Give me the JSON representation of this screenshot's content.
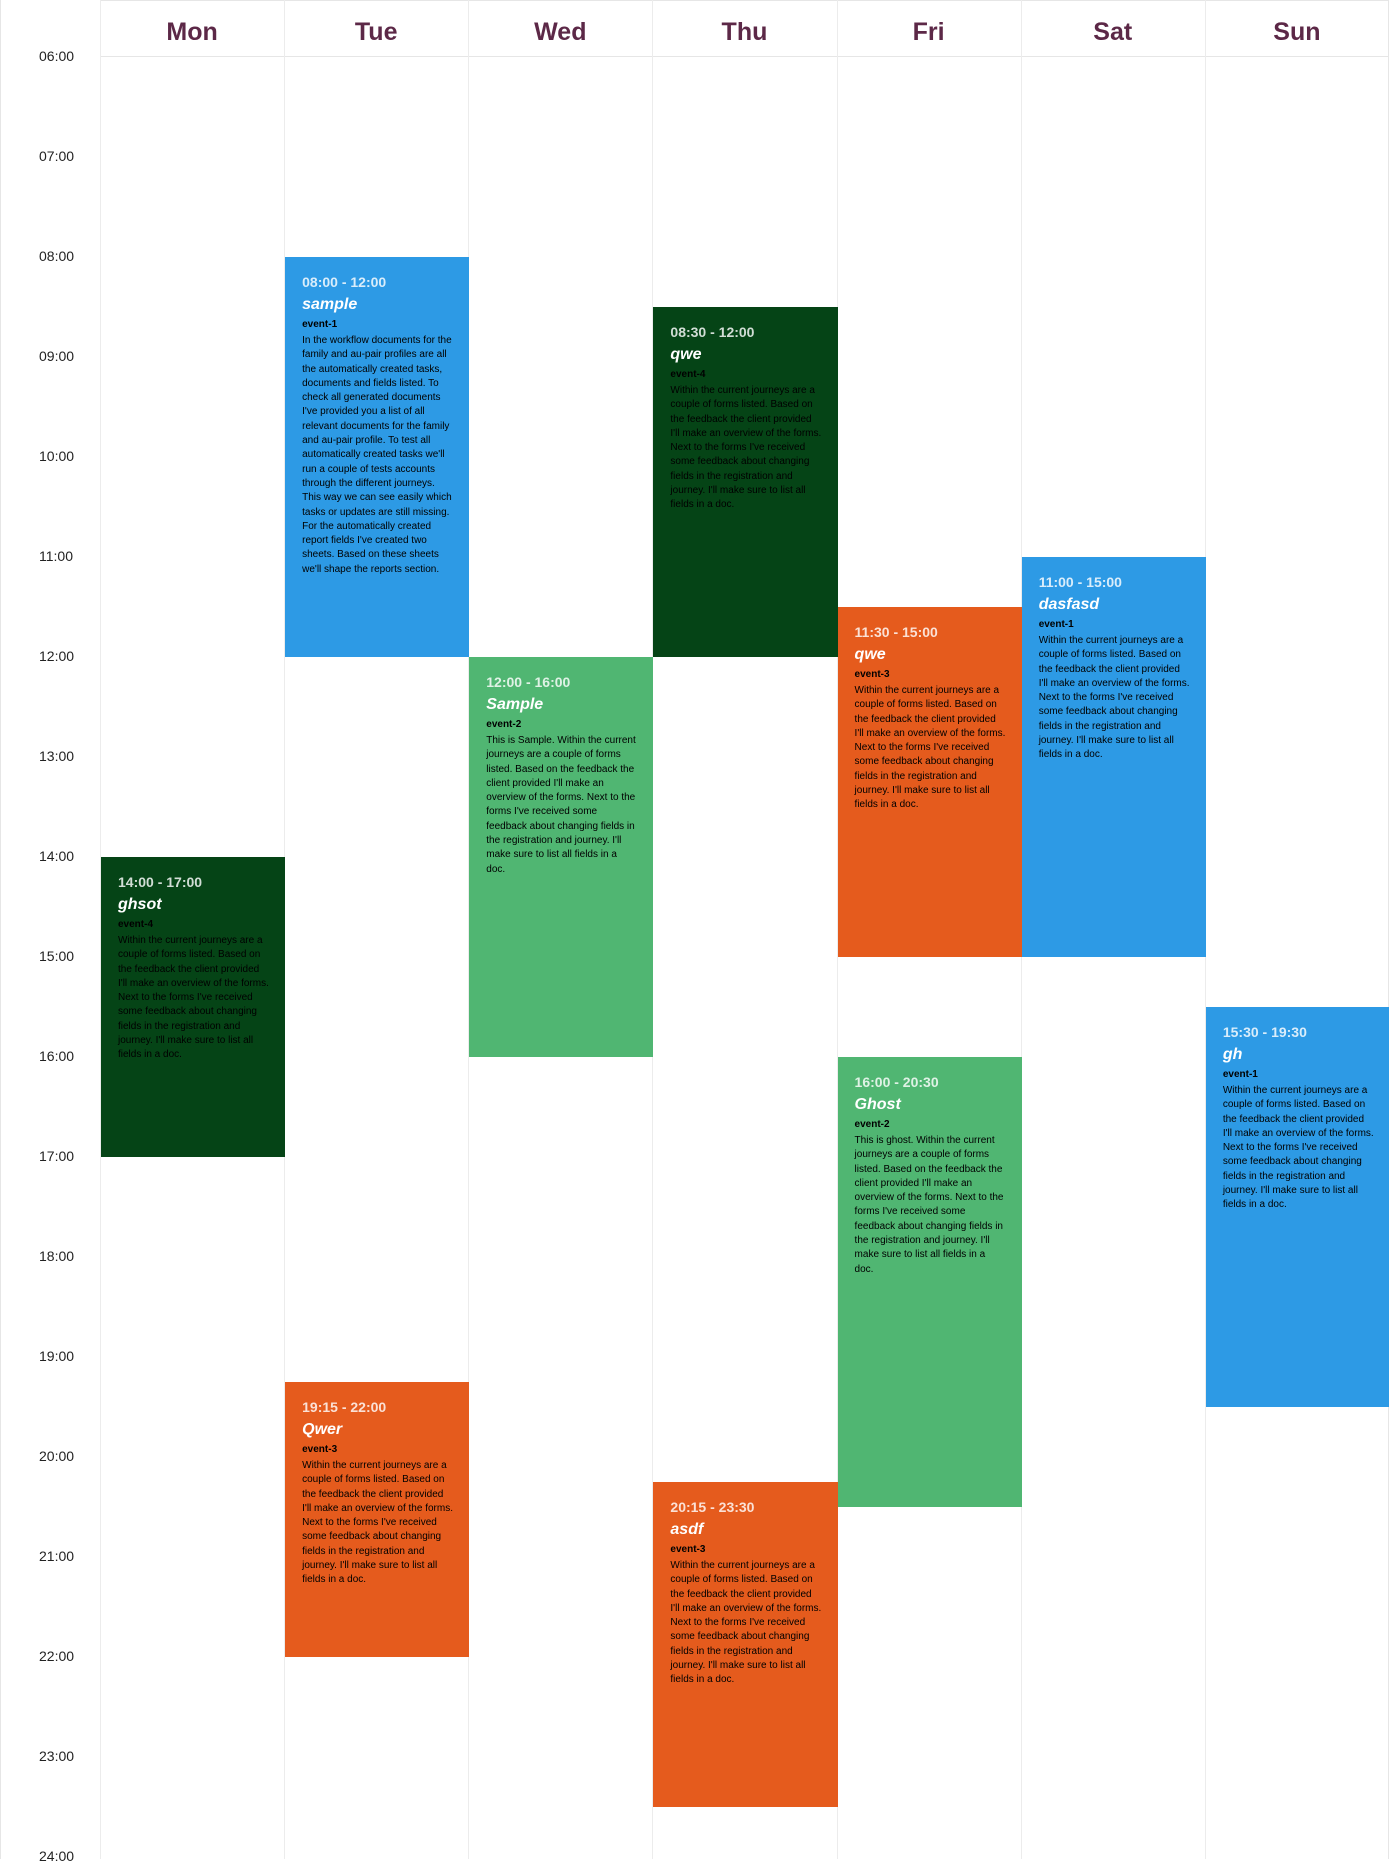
{
  "days": [
    "Mon",
    "Tue",
    "Wed",
    "Thu",
    "Fri",
    "Sat",
    "Sun"
  ],
  "times": [
    "06:00",
    "07:00",
    "08:00",
    "09:00",
    "10:00",
    "11:00",
    "12:00",
    "13:00",
    "14:00",
    "15:00",
    "16:00",
    "17:00",
    "18:00",
    "19:00",
    "20:00",
    "21:00",
    "22:00",
    "23:00",
    "24:00"
  ],
  "colors": {
    "blue": "#2d9ae5",
    "dark_green": "#054416",
    "orange": "#e55b1d",
    "green": "#50b672",
    "header_text": "#5c2847"
  },
  "events": [
    {
      "day": "Mon",
      "start": "14:00",
      "end": "17:00",
      "color": "dark",
      "time_label": "14:00 - 17:00",
      "title": "ghsot",
      "name": "event-4",
      "description": "Within the current journeys are a couple of forms listed. Based on the feedback the client provided I'll make an overview of the forms. Next to the forms I've received some feedback about changing fields in the registration and journey. I'll make sure to list all fields in a doc."
    },
    {
      "day": "Tue",
      "start": "08:00",
      "end": "12:00",
      "color": "blue",
      "time_label": "08:00 - 12:00",
      "title": "sample",
      "name": "event-1",
      "description": "In the workflow documents for the family and au-pair profiles are all the automatically created tasks, documents and fields listed. To check all generated documents I've provided you a list of all relevant documents for the family and au-pair profile. To test all automatically created tasks we'll run a couple of tests accounts through the different journeys. This way we can see easily which tasks or updates are still missing. For the automatically created report fields I've created two sheets. Based on these sheets we'll shape the reports section."
    },
    {
      "day": "Tue",
      "start": "19:15",
      "end": "22:00",
      "color": "orange",
      "time_label": "19:15 - 22:00",
      "title": "Qwer",
      "name": "event-3",
      "description": "Within the current journeys are a couple of forms listed. Based on the feedback the client provided I'll make an overview of the forms. Next to the forms I've received some feedback about changing fields in the registration and journey. I'll make sure to list all fields in a doc."
    },
    {
      "day": "Wed",
      "start": "12:00",
      "end": "16:00",
      "color": "green",
      "time_label": "12:00 - 16:00",
      "title": "Sample",
      "name": "event-2",
      "description": "This is Sample. Within the current journeys are a couple of forms listed. Based on the feedback the client provided I'll make an overview of the forms. Next to the forms I've received some feedback about changing fields in the registration and journey. I'll make sure to list all fields in a doc."
    },
    {
      "day": "Thu",
      "start": "08:30",
      "end": "12:00",
      "color": "dark",
      "time_label": "08:30 - 12:00",
      "title": "qwe",
      "name": "event-4",
      "description": "Within the current journeys are a couple of forms listed. Based on the feedback the client provided I'll make an overview of the forms. Next to the forms I've received some feedback about changing fields in the registration and journey. I'll make sure to list all fields in a doc."
    },
    {
      "day": "Thu",
      "start": "20:15",
      "end": "23:30",
      "color": "orange",
      "time_label": "20:15 - 23:30",
      "title": "asdf",
      "name": "event-3",
      "description": "Within the current journeys are a couple of forms listed. Based on the feedback the client provided I'll make an overview of the forms. Next to the forms I've received some feedback about changing fields in the registration and journey. I'll make sure to list all fields in a doc."
    },
    {
      "day": "Fri",
      "start": "11:30",
      "end": "15:00",
      "color": "orange",
      "time_label": "11:30 - 15:00",
      "title": "qwe",
      "name": "event-3",
      "description": "Within the current journeys are a couple of forms listed. Based on the feedback the client provided I'll make an overview of the forms. Next to the forms I've received some feedback about changing fields in the registration and journey. I'll make sure to list all fields in a doc."
    },
    {
      "day": "Fri",
      "start": "16:00",
      "end": "20:30",
      "color": "green",
      "time_label": "16:00 - 20:30",
      "title": "Ghost",
      "name": "event-2",
      "description": "This is ghost. Within the current journeys are a couple of forms listed. Based on the feedback the client provided I'll make an overview of the forms. Next to the forms I've received some feedback about changing fields in the registration and journey. I'll make sure to list all fields in a doc."
    },
    {
      "day": "Sat",
      "start": "11:00",
      "end": "15:00",
      "color": "blue",
      "time_label": "11:00 - 15:00",
      "title": "dasfasd",
      "name": "event-1",
      "description": "Within the current journeys are a couple of forms listed. Based on the feedback the client provided I'll make an overview of the forms. Next to the forms I've received some feedback about changing fields in the registration and journey. I'll make sure to list all fields in a doc."
    },
    {
      "day": "Sun",
      "start": "15:30",
      "end": "19:30",
      "color": "blue",
      "time_label": "15:30 - 19:30",
      "title": "gh",
      "name": "event-1",
      "description": "Within the current journeys are a couple of forms listed. Based on the feedback the client provided I'll make an overview of the forms. Next to the forms I've received some feedback about changing fields in the registration and journey. I'll make sure to list all fields in a doc."
    }
  ]
}
